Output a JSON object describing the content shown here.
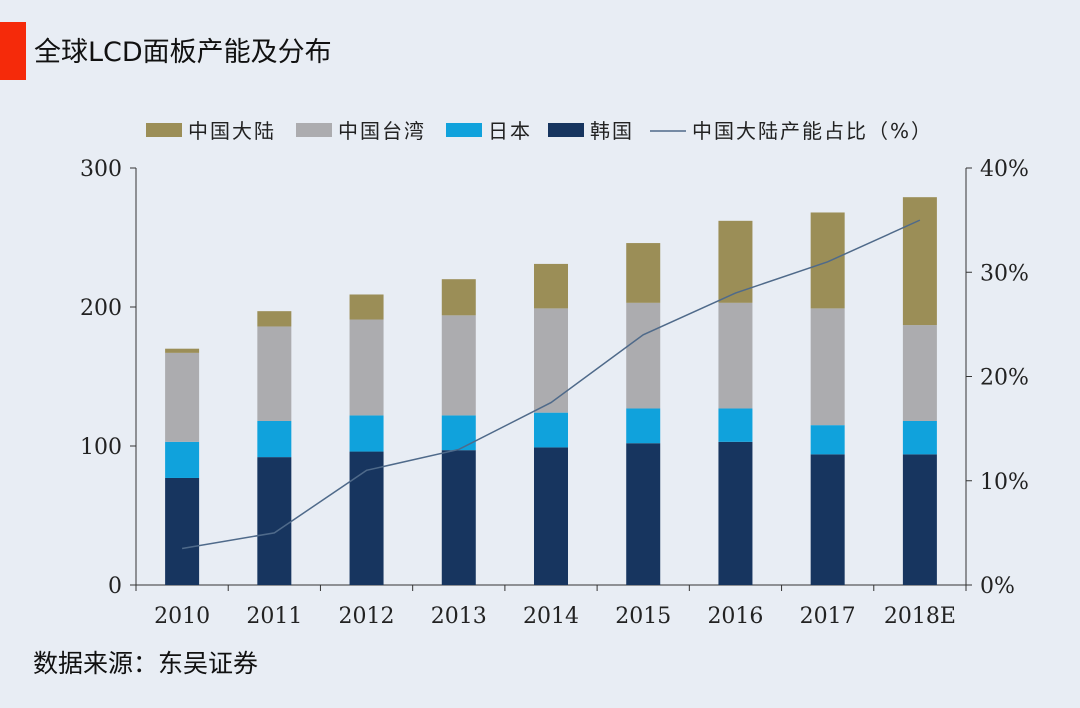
{
  "header": {
    "title": "全球LCD面板产能及分布"
  },
  "footer": {
    "source": "数据来源：东吴证券"
  },
  "colors": {
    "background": "#e8edf4",
    "title_accent": "#f52a0a",
    "mainland": "#9b8e57",
    "taiwan": "#acacaf",
    "japan": "#10a2dc",
    "korea": "#17355f",
    "line": "#4f6a8a",
    "axis": "#333333"
  },
  "chart_data": {
    "type": "bar",
    "stacked": true,
    "categories": [
      "2010",
      "2011",
      "2012",
      "2013",
      "2014",
      "2015",
      "2016",
      "2017",
      "2018E"
    ],
    "series": [
      {
        "name": "韩国",
        "key": "korea",
        "values": [
          77,
          92,
          96,
          97,
          99,
          102,
          103,
          94,
          94
        ]
      },
      {
        "name": "日本",
        "key": "japan",
        "values": [
          26,
          26,
          26,
          25,
          25,
          25,
          24,
          21,
          24
        ]
      },
      {
        "name": "中国台湾",
        "key": "taiwan",
        "values": [
          64,
          68,
          69,
          72,
          75,
          76,
          76,
          84,
          69
        ]
      },
      {
        "name": "中国大陆",
        "key": "mainland",
        "values": [
          3,
          11,
          18,
          26,
          32,
          43,
          59,
          69,
          92
        ]
      }
    ],
    "line_series": {
      "name": "中国大陆产能占比（%）",
      "values": [
        3.5,
        5,
        11,
        13,
        17.5,
        24,
        28,
        31,
        35
      ]
    },
    "legend": {
      "position": "top",
      "entries": [
        "中国大陆",
        "中国台湾",
        "日本",
        "韩国",
        "中国大陆产能占比（%）"
      ]
    },
    "y_left": {
      "ylim": [
        0,
        300
      ],
      "ticks": [
        "0",
        "100",
        "200",
        "300"
      ]
    },
    "y_right": {
      "ylim": [
        0,
        40
      ],
      "ticks": [
        "0%",
        "10%",
        "20%",
        "30%",
        "40%"
      ]
    },
    "grid": false
  }
}
